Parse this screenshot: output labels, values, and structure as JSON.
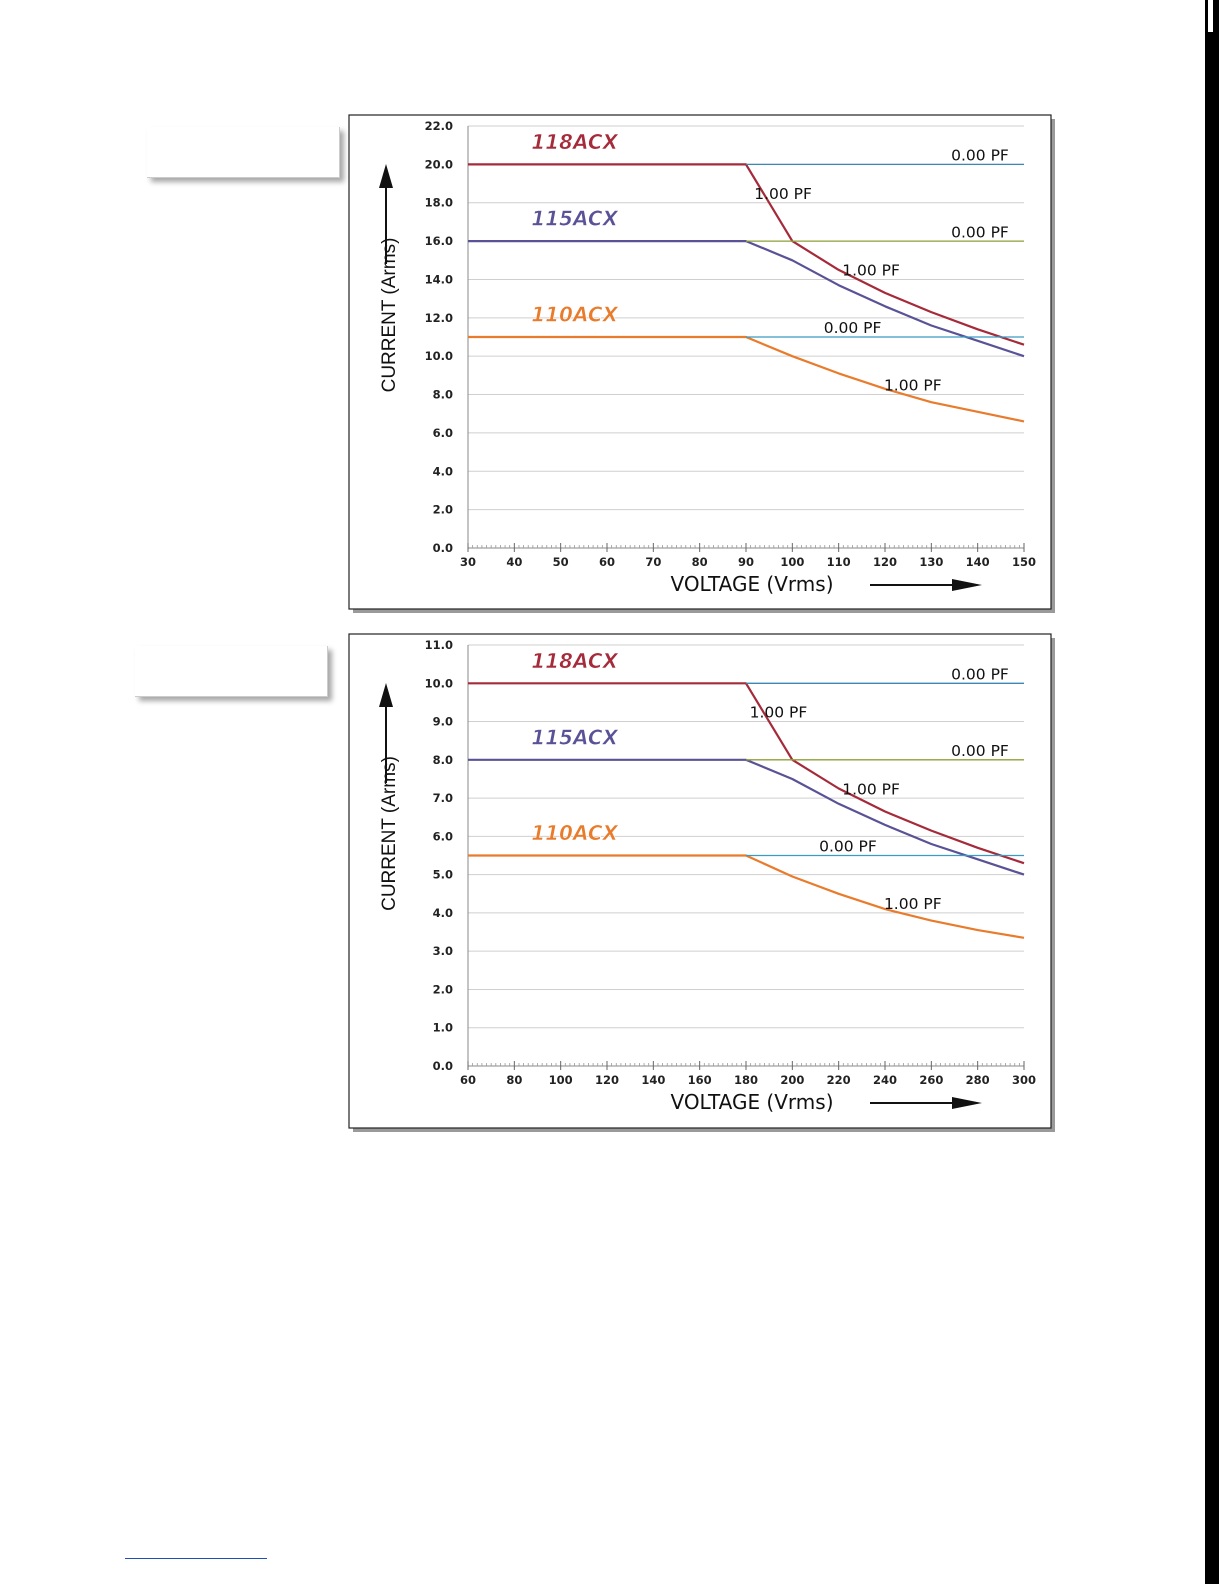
{
  "colors": {
    "118ACX": "#a52a3a",
    "115ACX": "#5a5296",
    "110ACX": "#e97b2c",
    "pf0_118": "#3b88b5",
    "pf0_115": "#8fa13a",
    "pf0_110": "#3b9bc0",
    "grid": "#cfcfcf"
  },
  "chart_data": [
    {
      "type": "line",
      "xlabel": "VOLTAGE (Vrms)",
      "ylabel": "CURRENT (Arms)",
      "xlim": [
        30,
        150
      ],
      "ylim": [
        0,
        22
      ],
      "xticks": [
        "30",
        "40",
        "50",
        "60",
        "70",
        "80",
        "90",
        "100",
        "110",
        "120",
        "130",
        "140",
        "150"
      ],
      "yticks": [
        "0.0",
        "2.0",
        "4.0",
        "6.0",
        "8.0",
        "10.0",
        "12.0",
        "14.0",
        "16.0",
        "18.0",
        "20.0",
        "22.0"
      ],
      "grid": true,
      "series": [
        {
          "name": "118ACX",
          "label": "1.00 PF",
          "color_key": "118ACX",
          "x": [
            30,
            90,
            100,
            110,
            120,
            130,
            140,
            150
          ],
          "y": [
            20,
            20,
            16,
            14.5,
            13.3,
            12.3,
            11.4,
            10.6
          ]
        },
        {
          "name": "118ACX",
          "label": "0.00 PF",
          "color_key": "pf0_118",
          "x": [
            90,
            150
          ],
          "y": [
            20,
            20
          ]
        },
        {
          "name": "115ACX",
          "label": "1.00 PF",
          "color_key": "115ACX",
          "x": [
            30,
            90,
            100,
            110,
            120,
            130,
            140,
            150
          ],
          "y": [
            16,
            16,
            15,
            13.7,
            12.6,
            11.6,
            10.8,
            10
          ]
        },
        {
          "name": "115ACX",
          "label": "0.00 PF",
          "color_key": "pf0_115",
          "x": [
            90,
            150
          ],
          "y": [
            16,
            16
          ]
        },
        {
          "name": "110ACX",
          "label": "1.00 PF",
          "color_key": "110ACX",
          "x": [
            30,
            90,
            100,
            110,
            120,
            130,
            140,
            150
          ],
          "y": [
            11,
            11,
            10,
            9.1,
            8.3,
            7.6,
            7.1,
            6.6
          ]
        },
        {
          "name": "110ACX",
          "label": "0.00 PF",
          "color_key": "pf0_110",
          "x": [
            90,
            150
          ],
          "y": [
            11,
            11
          ]
        }
      ],
      "annotations": [
        {
          "text": "118ACX",
          "kind": "series",
          "color_key": "118ACX",
          "x": 53,
          "y": 20.8
        },
        {
          "text": "115ACX",
          "kind": "series",
          "color_key": "115ACX",
          "x": 53,
          "y": 16.8
        },
        {
          "text": "110ACX",
          "kind": "series",
          "color_key": "110ACX",
          "x": 53,
          "y": 11.8
        },
        {
          "text": "0.00 PF",
          "kind": "pf",
          "x": 140.5,
          "y": 20.2
        },
        {
          "text": "1.00 PF",
          "kind": "pf",
          "x": 98,
          "y": 18.2
        },
        {
          "text": "0.00 PF",
          "kind": "pf",
          "x": 140.5,
          "y": 16.2
        },
        {
          "text": "1.00 PF",
          "kind": "pf",
          "x": 117,
          "y": 14.2
        },
        {
          "text": "0.00 PF",
          "kind": "pf",
          "x": 113,
          "y": 11.2
        },
        {
          "text": "1.00 PF",
          "kind": "pf",
          "x": 126,
          "y": 8.2
        }
      ]
    },
    {
      "type": "line",
      "xlabel": "VOLTAGE (Vrms)",
      "ylabel": "CURRENT (Arms)",
      "xlim": [
        60,
        300
      ],
      "ylim": [
        0,
        11
      ],
      "xticks": [
        "60",
        "80",
        "100",
        "120",
        "140",
        "160",
        "180",
        "200",
        "220",
        "240",
        "260",
        "280",
        "300"
      ],
      "yticks": [
        "0.0",
        "1.0",
        "2.0",
        "3.0",
        "4.0",
        "5.0",
        "6.0",
        "7.0",
        "8.0",
        "9.0",
        "10.0",
        "11.0"
      ],
      "grid": true,
      "series": [
        {
          "name": "118ACX",
          "label": "1.00 PF",
          "color_key": "118ACX",
          "x": [
            60,
            180,
            200,
            220,
            240,
            260,
            280,
            300
          ],
          "y": [
            10,
            10,
            8,
            7.25,
            6.65,
            6.15,
            5.7,
            5.3
          ]
        },
        {
          "name": "118ACX",
          "label": "0.00 PF",
          "color_key": "pf0_118",
          "x": [
            180,
            300
          ],
          "y": [
            10,
            10
          ]
        },
        {
          "name": "115ACX",
          "label": "1.00 PF",
          "color_key": "115ACX",
          "x": [
            60,
            180,
            200,
            220,
            240,
            260,
            280,
            300
          ],
          "y": [
            8,
            8,
            7.5,
            6.85,
            6.3,
            5.8,
            5.4,
            5.0
          ]
        },
        {
          "name": "115ACX",
          "label": "0.00 PF",
          "color_key": "pf0_115",
          "x": [
            180,
            300
          ],
          "y": [
            8,
            8
          ]
        },
        {
          "name": "110ACX",
          "label": "1.00 PF",
          "color_key": "110ACX",
          "x": [
            60,
            180,
            200,
            220,
            240,
            260,
            280,
            300
          ],
          "y": [
            5.5,
            5.5,
            4.95,
            4.5,
            4.1,
            3.8,
            3.55,
            3.35
          ]
        },
        {
          "name": "110ACX",
          "label": "0.00 PF",
          "color_key": "pf0_110",
          "x": [
            180,
            300
          ],
          "y": [
            5.5,
            5.5
          ]
        }
      ],
      "annotations": [
        {
          "text": "118ACX",
          "kind": "series",
          "color_key": "118ACX",
          "x": 106,
          "y": 10.4
        },
        {
          "text": "115ACX",
          "kind": "series",
          "color_key": "115ACX",
          "x": 106,
          "y": 8.4
        },
        {
          "text": "110ACX",
          "kind": "series",
          "color_key": "110ACX",
          "x": 106,
          "y": 5.9
        },
        {
          "text": "0.00 PF",
          "kind": "pf",
          "x": 281,
          "y": 10.1
        },
        {
          "text": "1.00 PF",
          "kind": "pf",
          "x": 194,
          "y": 9.1
        },
        {
          "text": "0.00 PF",
          "kind": "pf",
          "x": 281,
          "y": 8.1
        },
        {
          "text": "1.00 PF",
          "kind": "pf",
          "x": 234,
          "y": 7.1
        },
        {
          "text": "0.00 PF",
          "kind": "pf",
          "x": 224,
          "y": 5.6
        },
        {
          "text": "1.00 PF",
          "kind": "pf",
          "x": 252,
          "y": 4.1
        }
      ]
    }
  ]
}
